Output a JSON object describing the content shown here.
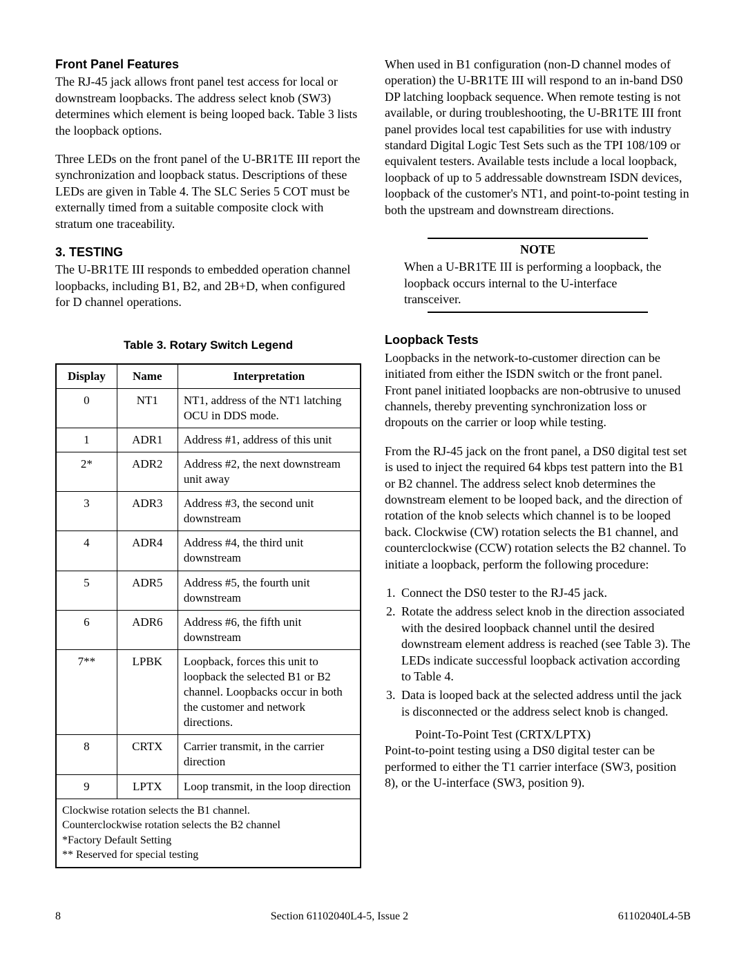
{
  "left": {
    "h1": "Front Panel Features",
    "p1": "The RJ-45 jack allows front panel test access for local or downstream loopbacks.  The address select knob (SW3) determines which element is being looped back.  Table 3 lists the loopback options.",
    "p2": "Three LEDs on the front panel of the U-BR1TE III report the synchronization and loopback status.  Descriptions of these LEDs are given in Table 4.  The SLC Series 5 COT must be externally timed from a suitable composite clock with stratum one traceability.",
    "h2": "3.   TESTING",
    "p3": "The U-BR1TE III responds to embedded operation channel loopbacks, including B1, B2, and 2B+D, when configured for D channel operations.",
    "table_title": "Table 3.  Rotary Switch Legend",
    "table": {
      "headers": [
        "Display",
        "Name",
        "Interpretation"
      ],
      "rows": [
        [
          "0",
          "NT1",
          "NT1, address of the NT1 latching OCU in DDS mode."
        ],
        [
          "1",
          "ADR1",
          "Address #1, address of this unit"
        ],
        [
          "2*",
          "ADR2",
          "Address #2, the next downstream unit away"
        ],
        [
          "3",
          "ADR3",
          "Address #3, the second unit downstream"
        ],
        [
          "4",
          "ADR4",
          "Address #4, the third unit downstream"
        ],
        [
          "5",
          "ADR5",
          "Address #5, the fourth unit downstream"
        ],
        [
          "6",
          "ADR6",
          "Address #6, the fifth unit downstream"
        ],
        [
          "7**",
          "LPBK",
          "Loopback, forces this unit to loopback the selected B1 or B2 channel.  Loopbacks occur in both the customer and network directions."
        ],
        [
          "8",
          "CRTX",
          "Carrier transmit, in the carrier direction"
        ],
        [
          "9",
          "LPTX",
          "Loop transmit, in the loop direction"
        ]
      ],
      "footer_lines": [
        "Clockwise rotation selects the B1 channel.",
        "Counterclockwise rotation selects the B2 channel",
        "*Factory Default Setting",
        "** Reserved for special testing"
      ]
    }
  },
  "right": {
    "p1": "When used in B1 configuration (non-D channel modes of operation) the U-BR1TE III will respond to an in-band DS0 DP latching loopback sequence.  When remote testing is not available, or during troubleshooting, the U-BR1TE III front panel provides local test capabilities for use with industry standard Digital Logic Test Sets such as the TPI 108/109 or equivalent  testers.  Available tests include a local loopback,  loopback of up to 5 addressable downstream ISDN devices, loopback of the customer's NT1, and point-to-point testing in both the upstream and downstream directions.",
    "note_title": "NOTE",
    "note_text": "When  a U-BR1TE III is performing a loopback, the loopback occurs internal to the U-interface transceiver.",
    "h1": "Loopback Tests",
    "p2": "Loopbacks in the network-to-customer direction can be initiated from either the ISDN switch or the front panel.  Front panel initiated loopbacks are non-obtrusive to unused channels, thereby preventing synchronization loss or dropouts on the carrier or loop while testing.",
    "p3": "From the RJ-45 jack on the front panel, a DS0 digital test set is used to inject the required 64 kbps test pattern into the B1 or B2 channel.  The address select knob determines the downstream element to be looped back, and the direction of rotation of the knob selects which channel is to be looped back. Clockwise (CW) rotation selects the B1 channel, and counterclockwise (CCW) rotation selects the B2 channel.  To initiate a loopback, perform the following procedure:",
    "steps": [
      "Connect the DS0 tester to the RJ-45 jack.",
      "Rotate the address select knob in the direction associated with the desired loopback channel until the desired downstream element address is reached (see Table 3).  The LEDs indicate successful loopback activation according to Table 4.",
      "Data is looped back at the selected address until the jack is disconnected or the address select knob is changed."
    ],
    "sub_ptp": "Point-To-Point Test (CRTX/LPTX)",
    "p4": "Point-to-point testing using a DS0 digital tester can be performed to either the T1 carrier interface (SW3, position 8), or the U-interface (SW3, position 9)."
  },
  "footer": {
    "page": "8",
    "center": "Section 61102040L4-5, Issue 2",
    "right": "61102040L4-5B"
  }
}
